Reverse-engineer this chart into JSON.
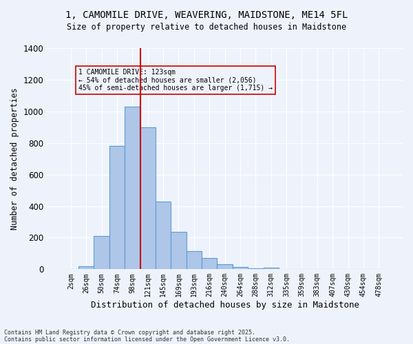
{
  "title_line1": "1, CAMOMILE DRIVE, WEAVERING, MAIDSTONE, ME14 5FL",
  "title_line2": "Size of property relative to detached houses in Maidstone",
  "xlabel": "Distribution of detached houses by size in Maidstone",
  "ylabel": "Number of detached properties",
  "footnote1": "Contains HM Land Registry data © Crown copyright and database right 2025.",
  "footnote2": "Contains public sector information licensed under the Open Government Licence v3.0.",
  "bar_labels": [
    "2sqm",
    "26sqm",
    "50sqm",
    "74sqm",
    "98sqm",
    "121sqm",
    "145sqm",
    "169sqm",
    "193sqm",
    "216sqm",
    "240sqm",
    "264sqm",
    "288sqm",
    "312sqm",
    "335sqm",
    "359sqm",
    "383sqm",
    "407sqm",
    "430sqm",
    "454sqm",
    "478sqm"
  ],
  "hist_counts": [
    0,
    20,
    210,
    780,
    1030,
    900,
    430,
    235,
    115,
    70,
    30,
    15,
    5,
    10,
    0,
    0,
    0,
    0,
    0,
    0,
    0
  ],
  "bar_color": "#aec6e8",
  "bar_edge_color": "#5b9bd5",
  "vline_x": 4,
  "vline_color": "#cc0000",
  "annotation_text": "1 CAMOMILE DRIVE: 123sqm\n← 54% of detached houses are smaller (2,056)\n45% of semi-detached houses are larger (1,715) →",
  "annotation_box_color": "#cc0000",
  "ylim": [
    0,
    1400
  ],
  "background_color": "#eef3fb",
  "grid_color": "#ffffff"
}
